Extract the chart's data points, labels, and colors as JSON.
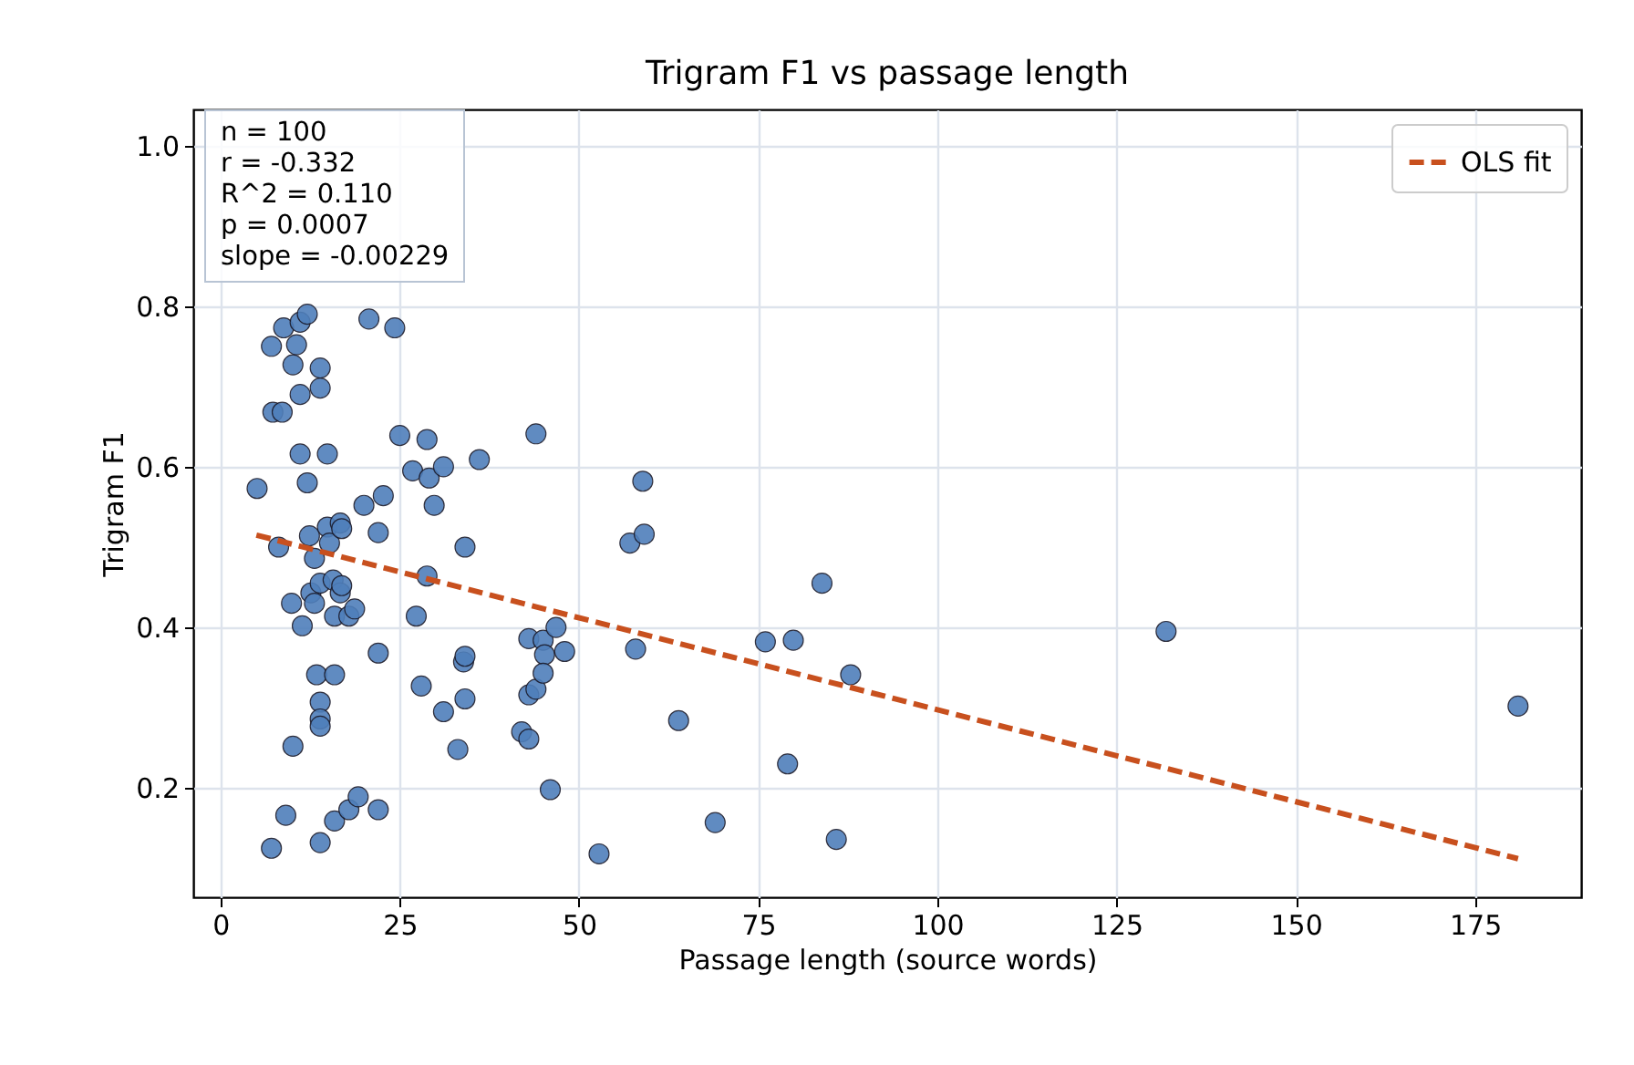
{
  "chart_data": {
    "type": "scatter",
    "title": "Trigram F1 vs passage length",
    "xlabel": "Passage length (source words)",
    "ylabel": "Trigram F1",
    "xlim": [
      -3.8,
      189.8
    ],
    "ylim": [
      0.064,
      1.045
    ],
    "xticks": [
      0,
      25,
      50,
      75,
      100,
      125,
      150,
      175
    ],
    "yticks": [
      {
        "value": 0.2,
        "label": "0.2"
      },
      {
        "value": 0.4,
        "label": "0.4"
      },
      {
        "value": 0.6,
        "label": "0.6"
      },
      {
        "value": 0.8,
        "label": "0.8"
      },
      {
        "value": 1,
        "label": "1.0"
      }
    ],
    "grid": true,
    "legend": "top right",
    "annotations": [
      "n = 100\nr = -0.332\nR^2 = 0.110\np = 0.0007\nslope = -0.00229"
    ],
    "series": [
      {
        "marker": "circle",
        "color": "#4f7fbb",
        "x": [
          5.1,
          7.1,
          7.3,
          8.6,
          8.1,
          9.1,
          7.1,
          8.8,
          10.1,
          10.6,
          11.1,
          11.1,
          11.1,
          9.9,
          11.4,
          10.1,
          12.1,
          12.1,
          12.4,
          12.6,
          13.1,
          13.9,
          13.9,
          13.1,
          13.9,
          13.4,
          13.9,
          13.9,
          13.9,
          13.9,
          14.9,
          14.9,
          15.2,
          15.7,
          15.9,
          15.9,
          15.9,
          16.7,
          16.7,
          16.9,
          16.9,
          17.9,
          17.9,
          18.7,
          19.2,
          20,
          20.7,
          22,
          22,
          22,
          22.7,
          24.3,
          25,
          26.8,
          27.3,
          28,
          28.8,
          28.8,
          29.1,
          29.8,
          31.1,
          31.1,
          33.1,
          33.9,
          34.1,
          34.1,
          34.1,
          36.1,
          42,
          43,
          43,
          43,
          44,
          44,
          45,
          45.2,
          45,
          46,
          46.8,
          48,
          52.8,
          57.1,
          57.9,
          58.9,
          59.1,
          63.9,
          69,
          76,
          79.9,
          79.1,
          83.9,
          85.9,
          87.9,
          131.9,
          181
        ],
        "values": [
          0.573,
          0.75,
          0.668,
          0.668,
          0.5,
          0.166,
          0.125,
          0.773,
          0.727,
          0.752,
          0.78,
          0.69,
          0.616,
          0.43,
          0.402,
          0.252,
          0.79,
          0.58,
          0.514,
          0.443,
          0.43,
          0.723,
          0.698,
          0.486,
          0.455,
          0.341,
          0.307,
          0.286,
          0.277,
          0.132,
          0.616,
          0.525,
          0.505,
          0.459,
          0.414,
          0.341,
          0.159,
          0.53,
          0.443,
          0.523,
          0.452,
          0.414,
          0.173,
          0.423,
          0.189,
          0.552,
          0.784,
          0.518,
          0.368,
          0.173,
          0.564,
          0.773,
          0.639,
          0.595,
          0.414,
          0.327,
          0.464,
          0.634,
          0.586,
          0.552,
          0.295,
          0.6,
          0.248,
          0.357,
          0.5,
          0.311,
          0.364,
          0.609,
          0.27,
          0.386,
          0.316,
          0.261,
          0.641,
          0.323,
          0.384,
          0.366,
          0.343,
          0.198,
          0.4,
          0.37,
          0.118,
          0.505,
          0.373,
          0.582,
          0.516,
          0.284,
          0.157,
          0.382,
          0.384,
          0.23,
          0.455,
          0.136,
          0.341,
          0.395,
          0.302
        ]
      },
      {
        "type": "line",
        "name": "OLS fit",
        "color": "#c8501e",
        "line_style": "dashed",
        "x": [
          5,
          181
        ],
        "values": [
          0.515,
          0.112
        ]
      }
    ]
  }
}
